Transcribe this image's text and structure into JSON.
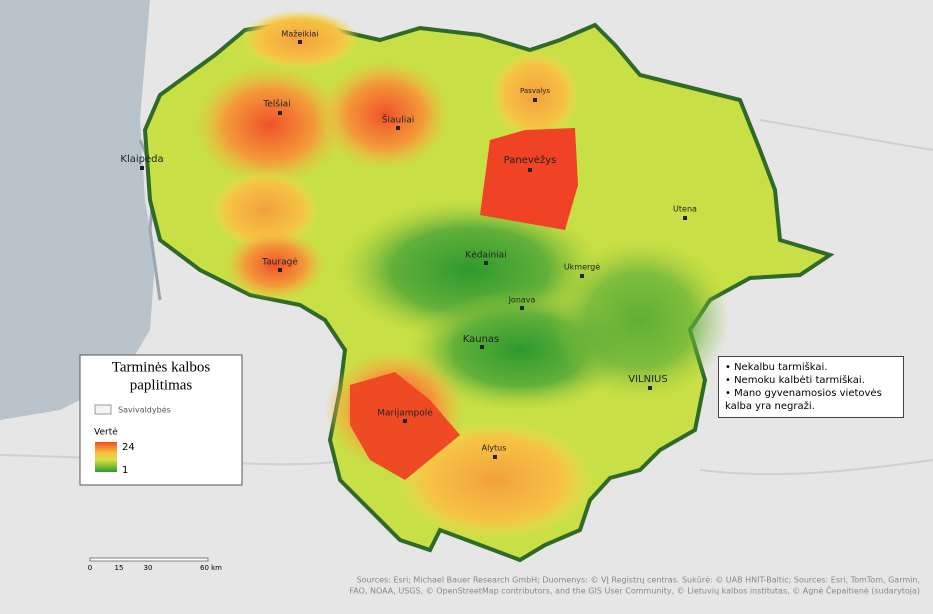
{
  "map": {
    "cities": [
      "Mažeikiai",
      "Telšiai",
      "Šiauliai",
      "Klaipėda",
      "Pasvalys",
      "Panevėžys",
      "Utena",
      "Kėdainiai",
      "Ukmergė",
      "Tauragė",
      "Jonava",
      "Kaunas",
      "VILNIUS",
      "Marijampolė",
      "Alytus"
    ]
  },
  "legend": {
    "title_lines": [
      "Tarminės kalbos",
      "paplitimas"
    ],
    "boundary_label": "Savivaldybės",
    "value_title": "Vertė",
    "max_label": "24",
    "min_label": "1"
  },
  "notes": [
    "Nekalbu tarmiškai.",
    "Nemoku kalbėti tarmiškai.",
    "Mano gyvenamosios vietovės kalba yra negraži."
  ],
  "scale_bar": {
    "labels": [
      "0",
      "15",
      "30",
      "60 km"
    ]
  },
  "attribution": [
    "Sources: Esri; Michael Bauer Research GmbH; Duomenys: © VĮ Registrų centras. Sukūrė: © UAB HNIT-Baltic; Sources: Esri, TomTom, Garmin,",
    "FAO, NOAA, USGS, © OpenStreetMap contributors, and the GIS User Community, © Lietuvių kalbos institutas, © Agnė Čepaitienė (sudarytoja)"
  ]
}
